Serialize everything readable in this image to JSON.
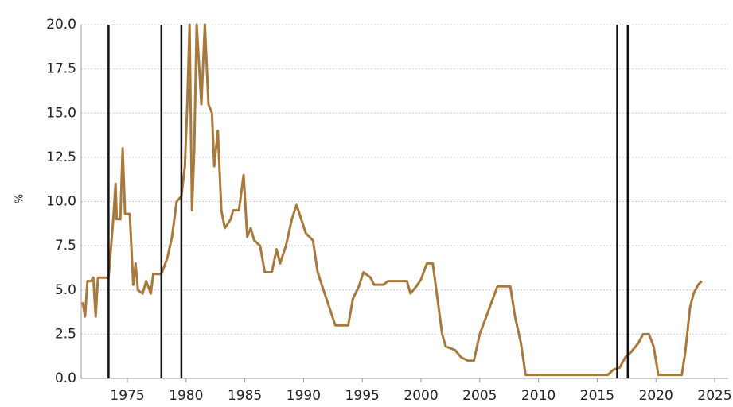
{
  "chart_data": {
    "type": "line",
    "y_label": "%",
    "color": "#a9793c",
    "grid": true,
    "xlim": [
      1971.07,
      2026.15
    ],
    "ylim": [
      0,
      20
    ],
    "xticks": [
      1975,
      1980,
      1985,
      1990,
      1995,
      2000,
      2005,
      2010,
      2015,
      2020,
      2025
    ],
    "yticks": [
      {
        "value": 0,
        "label": "0.0"
      },
      {
        "value": 2.5,
        "label": "2.5"
      },
      {
        "value": 5,
        "label": "5.0"
      },
      {
        "value": 7.5,
        "label": "7.5"
      },
      {
        "value": 10,
        "label": "10.0"
      },
      {
        "value": 12.5,
        "label": "12.5"
      },
      {
        "value": 15,
        "label": "15.0"
      },
      {
        "value": 17.5,
        "label": "17.5"
      },
      {
        "value": 20,
        "label": "20.0"
      }
    ],
    "vlines": [
      1973.4,
      1977.9,
      1979.6,
      2016.7,
      2017.6
    ],
    "vline_color": "#111111",
    "x": [
      1971.2,
      1971.4,
      1971.6,
      1971.9,
      1972.1,
      1972.3,
      1972.5,
      1973.4,
      1973.8,
      1974.0,
      1974.1,
      1974.4,
      1974.6,
      1974.8,
      1975.2,
      1975.5,
      1975.7,
      1975.9,
      1976.3,
      1976.6,
      1977.0,
      1977.2,
      1977.9,
      1978.4,
      1978.8,
      1979.2,
      1979.6,
      1979.9,
      1980.1,
      1980.3,
      1980.5,
      1980.7,
      1980.9,
      1981.3,
      1981.6,
      1981.9,
      1982.2,
      1982.4,
      1982.7,
      1983.0,
      1983.3,
      1983.8,
      1984.0,
      1984.5,
      1984.9,
      1985.2,
      1985.5,
      1985.8,
      1986.3,
      1986.7,
      1987.3,
      1987.7,
      1988.0,
      1988.5,
      1989.0,
      1989.4,
      1989.8,
      1990.2,
      1990.8,
      1991.2,
      1991.7,
      1992.2,
      1992.7,
      1993.8,
      1994.2,
      1994.7,
      1995.1,
      1995.7,
      1996.0,
      1996.8,
      1997.2,
      1998.8,
      1999.1,
      1999.6,
      2000.0,
      2000.5,
      2001.0,
      2001.3,
      2001.8,
      2002.1,
      2002.9,
      2003.4,
      2004.0,
      2004.5,
      2005.0,
      2006.5,
      2007.6,
      2008.0,
      2008.5,
      2008.9,
      2015.9,
      2016.4,
      2016.9,
      2017.4,
      2017.9,
      2018.5,
      2018.9,
      2019.4,
      2019.8,
      2020.2,
      2022.2,
      2022.5,
      2022.9,
      2023.2,
      2023.6,
      2023.9
    ],
    "values": [
      4.3,
      3.5,
      5.5,
      5.5,
      5.7,
      3.5,
      5.7,
      5.7,
      9.0,
      11.0,
      9.0,
      9.0,
      13.0,
      9.3,
      9.3,
      5.3,
      6.5,
      5.0,
      4.8,
      5.5,
      4.8,
      5.9,
      5.9,
      6.8,
      8.0,
      10.0,
      10.3,
      12.0,
      15.5,
      20.0,
      9.5,
      13.0,
      20.0,
      15.5,
      20.0,
      15.5,
      15.0,
      12.0,
      14.0,
      9.5,
      8.5,
      9.0,
      9.5,
      9.5,
      11.5,
      8.0,
      8.5,
      7.8,
      7.5,
      6.0,
      6.0,
      7.3,
      6.5,
      7.5,
      9.0,
      9.8,
      9.0,
      8.2,
      7.8,
      6.0,
      5.0,
      4.0,
      3.0,
      3.0,
      4.5,
      5.2,
      6.0,
      5.7,
      5.3,
      5.3,
      5.5,
      5.5,
      4.8,
      5.2,
      5.6,
      6.5,
      6.5,
      5.0,
      2.5,
      1.8,
      1.6,
      1.2,
      1.0,
      1.0,
      2.5,
      5.2,
      5.2,
      3.5,
      2.0,
      0.2,
      0.2,
      0.5,
      0.6,
      1.2,
      1.5,
      2.0,
      2.5,
      2.5,
      1.8,
      0.2,
      0.2,
      1.5,
      4.0,
      4.8,
      5.3,
      5.5
    ]
  }
}
